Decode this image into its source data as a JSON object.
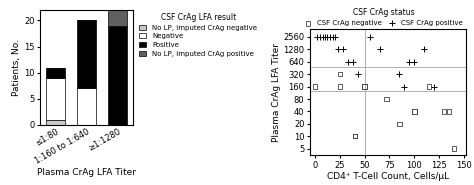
{
  "chart_data": [
    {
      "type": "bar",
      "stacked": true,
      "categories": [
        "≤1:80",
        "1:160 to 1:640",
        "≥1:1280"
      ],
      "series": [
        {
          "name": "No LP, imputed CrAg negative",
          "color": "#c8c8c8",
          "values": [
            1,
            0,
            0
          ]
        },
        {
          "name": "Negative",
          "color": "#ffffff",
          "values": [
            8,
            7,
            0
          ]
        },
        {
          "name": "Positive",
          "color": "#000000",
          "values": [
            2,
            13,
            19
          ]
        },
        {
          "name": "No LP, imputed CrAg positive",
          "color": "#606060",
          "values": [
            0,
            0,
            3
          ]
        }
      ],
      "x_label": "Plasma CrAg LFA Titer",
      "y_label": "Patients, No.",
      "ylim": [
        0,
        22
      ],
      "yticks": [
        0,
        5,
        10,
        15,
        20
      ],
      "legend": "upper left",
      "legend_title": "CSF CrAg LFA result"
    },
    {
      "type": "scatter",
      "log": "y",
      "series": [
        {
          "name": "CSF CrAg negative",
          "color": "#444444",
          "marker": "square",
          "x": [
            0,
            25,
            25,
            40,
            40,
            50,
            50,
            72,
            85,
            100,
            100,
            115,
            140,
            130,
            135
          ],
          "values": [
            160,
            160,
            320,
            10,
            10,
            160,
            160,
            80,
            20,
            40,
            40,
            160,
            5,
            40,
            40
          ]
        },
        {
          "name": "CSF CrAg positive",
          "color": "#000000",
          "marker": "plus",
          "x": [
            2,
            5,
            8,
            10,
            12,
            15,
            18,
            20,
            23,
            28,
            33,
            38,
            43,
            55,
            65,
            85,
            90,
            95,
            100,
            110,
            120
          ],
          "values": [
            2560,
            2560,
            2560,
            2560,
            2560,
            2560,
            2560,
            2560,
            1280,
            1280,
            640,
            640,
            320,
            2560,
            1280,
            320,
            160,
            640,
            640,
            1280,
            160
          ]
        }
      ],
      "x_label": "CD4⁺ T-Cell Count, Cells/μL",
      "y_label": "Plasma CrAg LFA Titer",
      "xlim": [
        -5,
        152
      ],
      "xticks": [
        0,
        25,
        50,
        75,
        100,
        125,
        150
      ],
      "ylim": [
        3.5,
        4000
      ],
      "yticks": [
        5,
        10,
        20,
        40,
        80,
        160,
        320,
        640,
        1280,
        2560
      ],
      "hlines": [
        480,
        128
      ],
      "vlines": [
        50
      ],
      "legend": "lower right",
      "legend_title": "CSF CrAg status"
    }
  ]
}
